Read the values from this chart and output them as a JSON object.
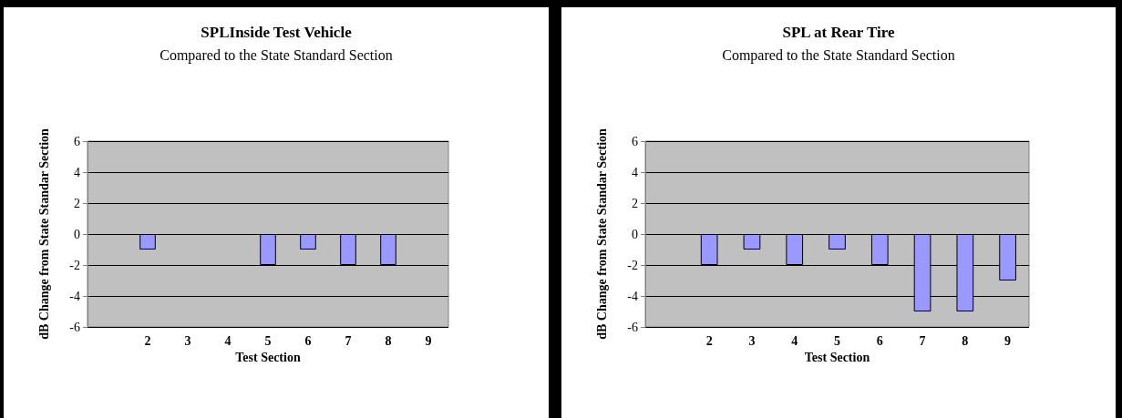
{
  "chart_data": [
    {
      "type": "bar",
      "title": "SPLInside Test Vehicle",
      "subtitle": "Compared to the State Standard Section",
      "xlabel": "Test Section",
      "ylabel": "dB Change from State Standar Section",
      "categories": [
        null,
        "2",
        "3",
        "4",
        "5",
        "6",
        "7",
        "8",
        "9"
      ],
      "series": [
        {
          "color": "#9999ff",
          "values": [
            null,
            -1,
            null,
            null,
            -2,
            -1,
            -2,
            -2,
            null
          ]
        }
      ],
      "ylim": [
        -6,
        6
      ],
      "yticks": [
        -6,
        -4,
        -2,
        0,
        2,
        4,
        6
      ],
      "grid": "y"
    },
    {
      "type": "bar",
      "title": "SPL at Rear Tire",
      "subtitle": "Compared to the State Standard Section",
      "xlabel": "Test Section",
      "ylabel": "dB Change from State Standar Section",
      "categories": [
        null,
        "2",
        "3",
        "4",
        "5",
        "6",
        "7",
        "8",
        "9"
      ],
      "series": [
        {
          "color": "#9999ff",
          "values": [
            null,
            -2,
            -1,
            -2,
            -1,
            -2,
            -5,
            -5,
            -3
          ]
        }
      ],
      "ylim": [
        -6,
        6
      ],
      "yticks": [
        -6,
        -4,
        -2,
        0,
        2,
        4,
        6
      ],
      "grid": "y"
    }
  ]
}
